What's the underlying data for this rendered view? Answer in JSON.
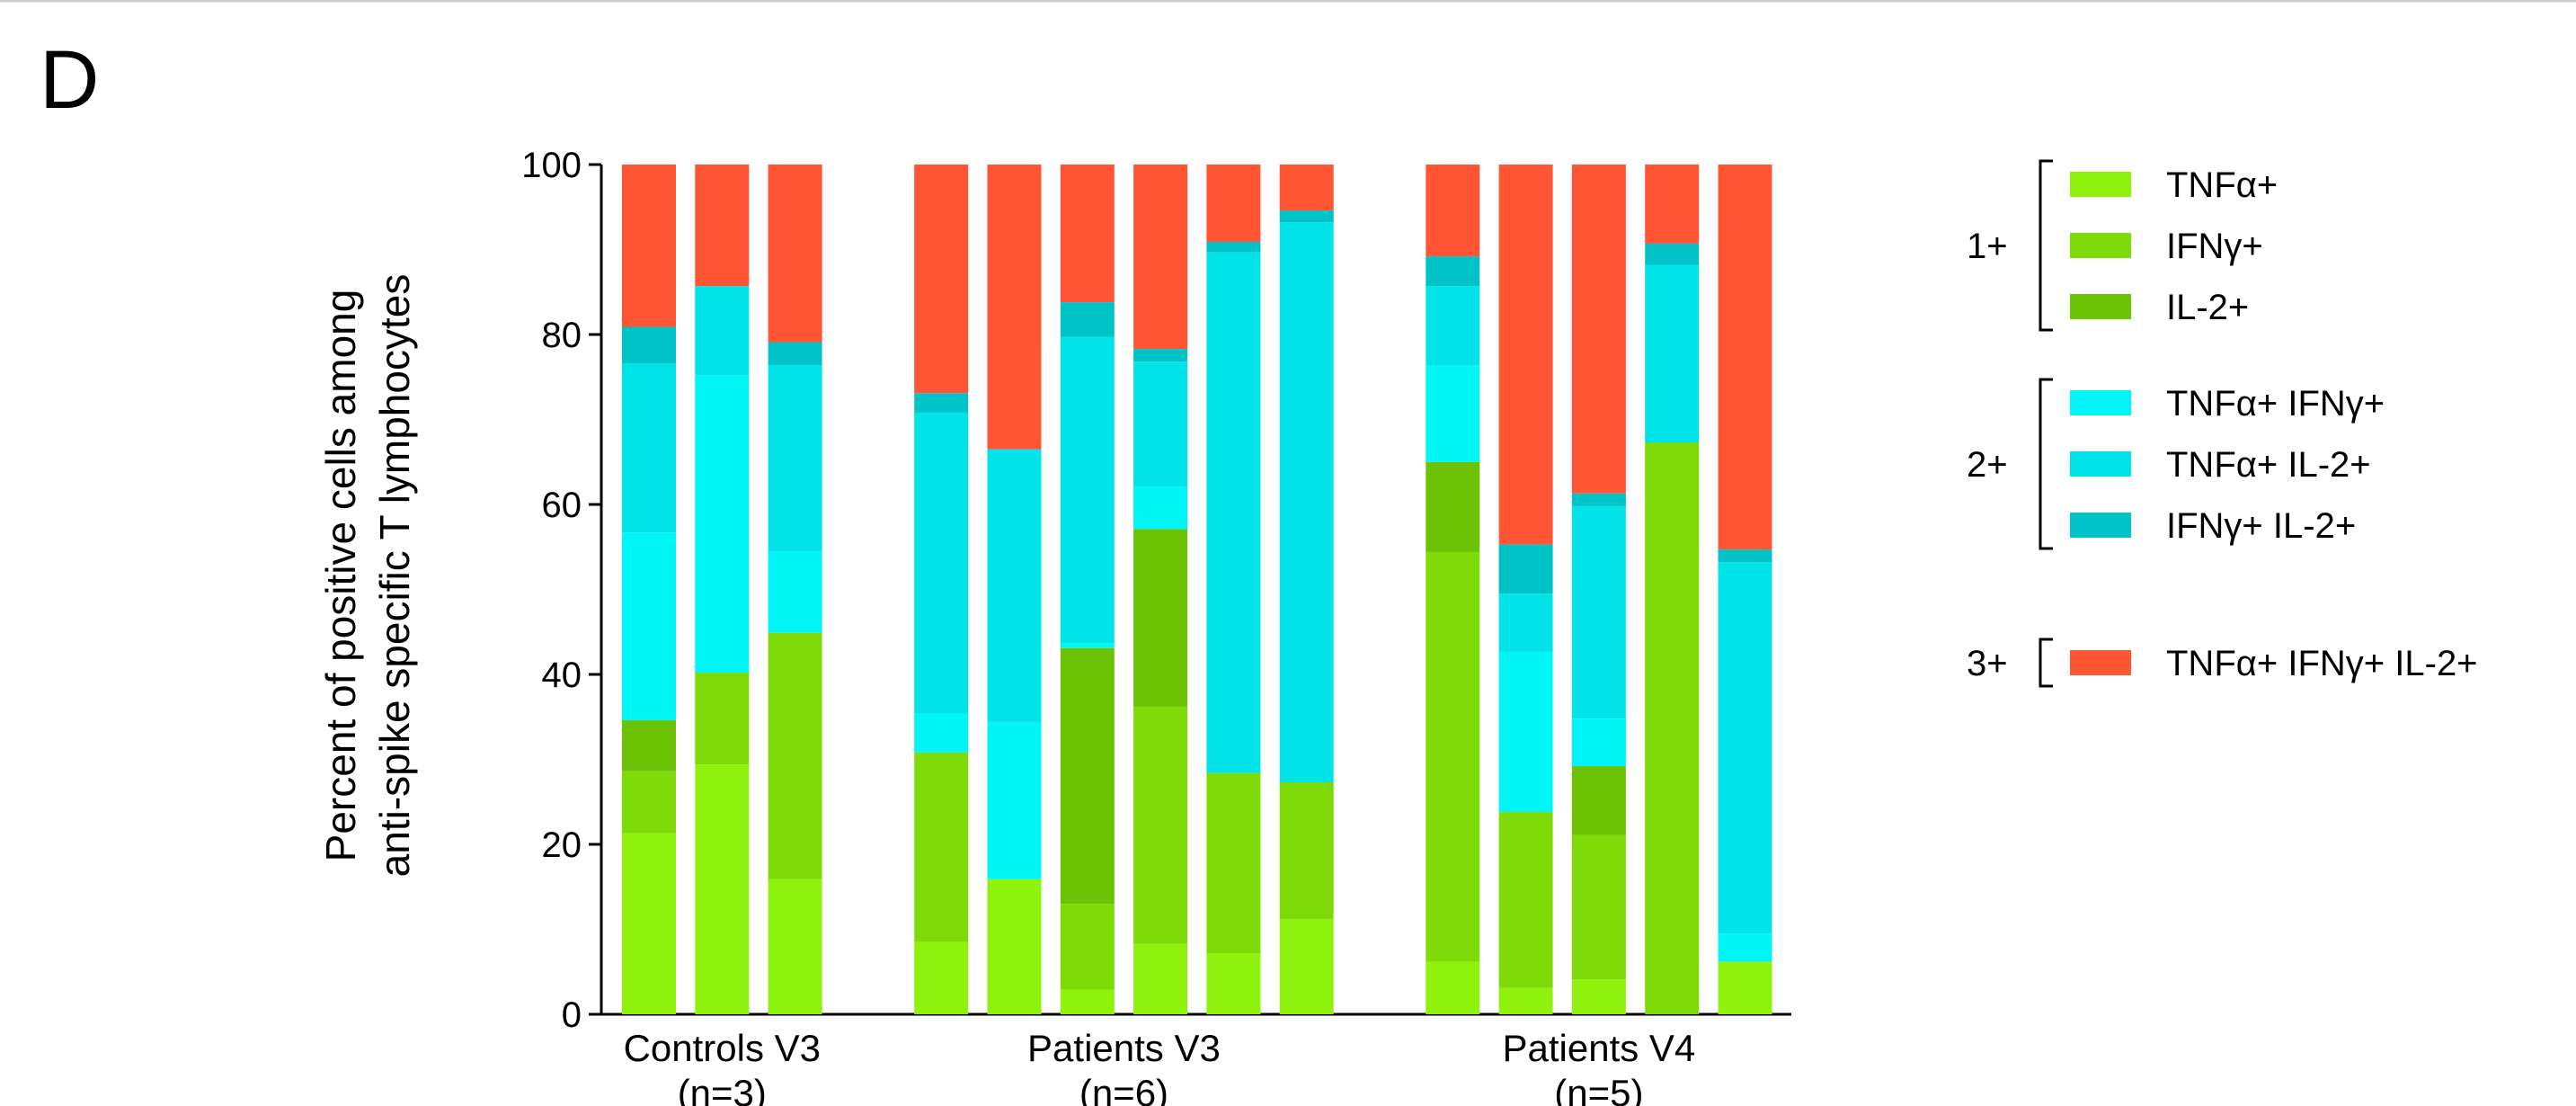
{
  "panel_label": "D",
  "chart_data": {
    "type": "bar",
    "stacked": true,
    "ylabel": [
      "Percent of positive cells among",
      "anti-spike specific T lymphocytes"
    ],
    "ylim": [
      0,
      100
    ],
    "yticks": [
      0,
      20,
      40,
      60,
      80,
      100
    ],
    "groups": [
      {
        "label": "Controls V3",
        "note": "(n=3)",
        "categories": [
          null,
          null,
          null
        ]
      },
      {
        "label": "Patients V3",
        "note": "(n=6)",
        "categories": [
          null,
          null,
          null,
          null,
          null,
          null
        ]
      },
      {
        "label": "Patients V4",
        "note": "(n=5)",
        "categories": [
          null,
          null,
          null,
          null,
          null
        ]
      }
    ],
    "series_groups": [
      {
        "name": "1+",
        "series": [
          {
            "name": "TNFα+",
            "color": "#8ef20c",
            "values": [
              21.3,
              29.4,
              15.9,
              8.5,
              15.9,
              2.9,
              8.3,
              7.2,
              11.2,
              6.2,
              3.1,
              4.1,
              0,
              6.2
            ]
          },
          {
            "name": "IFNγ+",
            "color": "#7edb08",
            "values": [
              7.3,
              10.8,
              29.0,
              22.3,
              0,
              10.1,
              27.9,
              21.2,
              16.1,
              48.2,
              20.7,
              17.0,
              67.3,
              0
            ]
          },
          {
            "name": "IL-2+",
            "color": "#6cc204",
            "values": [
              6.0,
              0,
              0,
              0,
              0,
              30.1,
              20.9,
              0,
              0,
              10.6,
              0,
              8.1,
              0,
              0
            ]
          }
        ]
      },
      {
        "name": "2+",
        "series": [
          {
            "name": "TNFα+ IFNγ+",
            "color": "#00f6f6",
            "values": [
              22.1,
              35.0,
              9.6,
              4.6,
              18.5,
              0.6,
              5.0,
              0,
              0,
              11.4,
              18.9,
              5.6,
              0,
              3.3
            ]
          },
          {
            "name": "TNFα+ IL-2+",
            "color": "#00e3e8",
            "values": [
              19.9,
              10.5,
              21.9,
              35.4,
              32.1,
              36.0,
              14.7,
              61.3,
              65.9,
              9.3,
              6.8,
              25.0,
              20.9,
              43.7
            ]
          },
          {
            "name": "IFNγ+ IL-2+",
            "color": "#00c3c8",
            "values": [
              4.3,
              0,
              2.7,
              2.3,
              0,
              4.1,
              1.5,
              1.2,
              1.4,
              3.5,
              5.8,
              1.5,
              2.5,
              1.5
            ]
          }
        ]
      },
      {
        "name": "3+",
        "series": [
          {
            "name": "TNFα+ IFNγ+ IL-2+",
            "color": "#ff5535",
            "values": [
              19.1,
              14.3,
              20.9,
              26.9,
              33.5,
              16.2,
              21.7,
              9.1,
              5.4,
              10.8,
              44.7,
              38.7,
              9.3,
              45.3
            ]
          }
        ]
      }
    ]
  }
}
